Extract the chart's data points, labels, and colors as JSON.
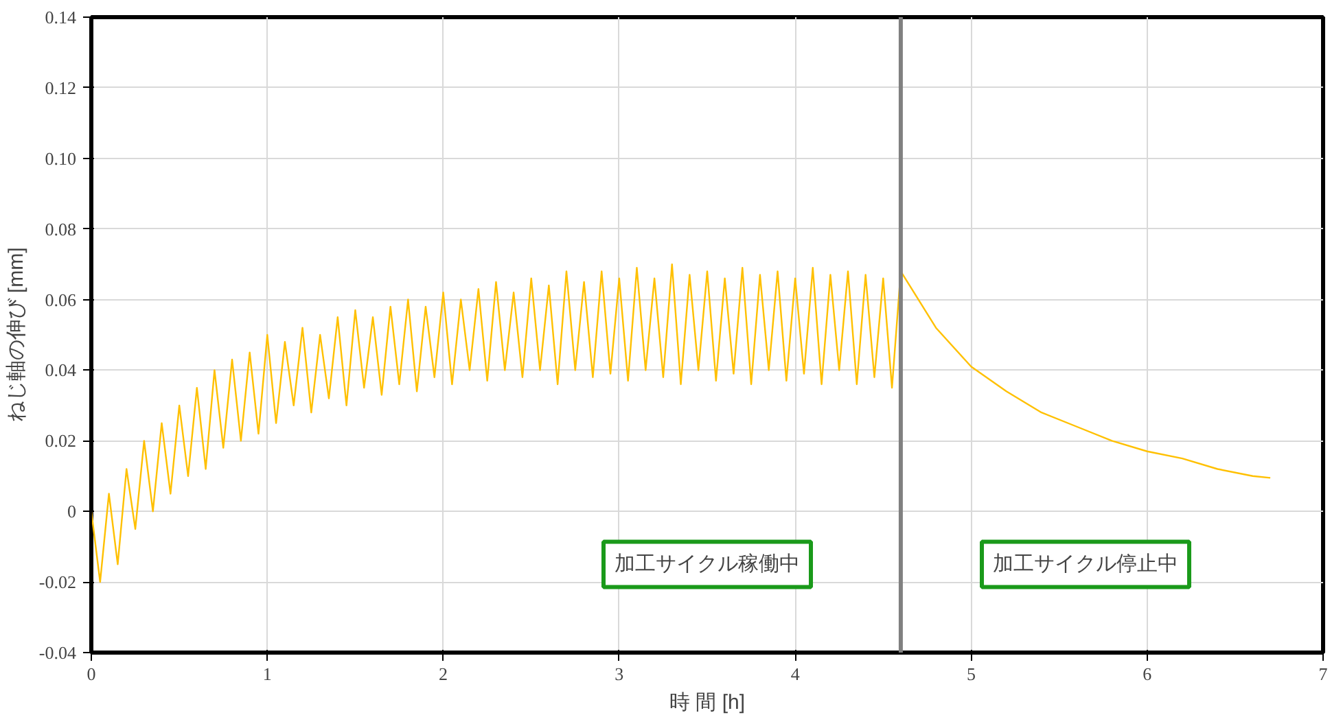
{
  "chart_data": {
    "type": "line",
    "xlabel": "時 間 [h]",
    "ylabel": "ねじ軸の伸び [mm]",
    "x": [
      0,
      0.05,
      0.1,
      0.15,
      0.2,
      0.25,
      0.3,
      0.35,
      0.4,
      0.45,
      0.5,
      0.55,
      0.6,
      0.65,
      0.7,
      0.75,
      0.8,
      0.85,
      0.9,
      0.95,
      1.0,
      1.05,
      1.1,
      1.15,
      1.2,
      1.25,
      1.3,
      1.35,
      1.4,
      1.45,
      1.5,
      1.55,
      1.6,
      1.65,
      1.7,
      1.75,
      1.8,
      1.85,
      1.9,
      1.95,
      2.0,
      2.05,
      2.1,
      2.15,
      2.2,
      2.25,
      2.3,
      2.35,
      2.4,
      2.45,
      2.5,
      2.55,
      2.6,
      2.65,
      2.7,
      2.75,
      2.8,
      2.85,
      2.9,
      2.95,
      3.0,
      3.05,
      3.1,
      3.15,
      3.2,
      3.25,
      3.3,
      3.35,
      3.4,
      3.45,
      3.5,
      3.55,
      3.6,
      3.65,
      3.7,
      3.75,
      3.8,
      3.85,
      3.9,
      3.95,
      4.0,
      4.05,
      4.1,
      4.15,
      4.2,
      4.25,
      4.3,
      4.35,
      4.4,
      4.45,
      4.5,
      4.55,
      4.6,
      4.65,
      4.8,
      5.0,
      5.2,
      5.4,
      5.6,
      5.8,
      6.0,
      6.2,
      6.4,
      6.6,
      6.7
    ],
    "series": [
      {
        "color": "#ffc000",
        "values": [
          0.0,
          -0.02,
          0.005,
          -0.015,
          0.012,
          -0.005,
          0.02,
          0.0,
          0.025,
          0.005,
          0.03,
          0.01,
          0.035,
          0.012,
          0.04,
          0.018,
          0.043,
          0.02,
          0.045,
          0.022,
          0.05,
          0.025,
          0.048,
          0.03,
          0.052,
          0.028,
          0.05,
          0.032,
          0.055,
          0.03,
          0.057,
          0.035,
          0.055,
          0.033,
          0.058,
          0.036,
          0.06,
          0.034,
          0.058,
          0.038,
          0.062,
          0.036,
          0.06,
          0.04,
          0.063,
          0.037,
          0.065,
          0.04,
          0.062,
          0.038,
          0.066,
          0.04,
          0.064,
          0.036,
          0.068,
          0.04,
          0.065,
          0.038,
          0.068,
          0.039,
          0.066,
          0.037,
          0.069,
          0.04,
          0.066,
          0.038,
          0.07,
          0.036,
          0.067,
          0.04,
          0.068,
          0.037,
          0.066,
          0.039,
          0.069,
          0.036,
          0.067,
          0.04,
          0.068,
          0.037,
          0.066,
          0.039,
          0.069,
          0.036,
          0.067,
          0.04,
          0.068,
          0.036,
          0.067,
          0.038,
          0.066,
          0.035,
          0.068,
          0.064,
          0.052,
          0.041,
          0.034,
          0.028,
          0.024,
          0.02,
          0.017,
          0.015,
          0.012,
          0.01,
          0.0095
        ]
      }
    ],
    "xlim": [
      0,
      7
    ],
    "xticks": [
      0,
      1,
      2,
      3,
      4,
      5,
      6,
      7
    ],
    "ylim": [
      -0.04,
      0.14
    ],
    "yticks": [
      {
        "value": -0.04,
        "label": "-0.04"
      },
      {
        "value": -0.02,
        "label": "-0.02"
      },
      0,
      {
        "value": 0.02,
        "label": "0.02"
      },
      {
        "value": 0.04,
        "label": "0.04"
      },
      {
        "value": 0.06,
        "label": "0.06"
      },
      {
        "value": 0.08,
        "label": "0.08"
      },
      {
        "value": 0.1,
        "label": "0.10"
      },
      {
        "value": 0.12,
        "label": "0.12"
      },
      {
        "value": 0.14,
        "label": "0.14"
      }
    ],
    "ref_lines": [
      {
        "axis": "x",
        "value": 4.6,
        "color": "#808080"
      }
    ],
    "annotations": [
      "加工サイクル稼働中",
      "加工サイクル停止中"
    ],
    "grid": true
  }
}
